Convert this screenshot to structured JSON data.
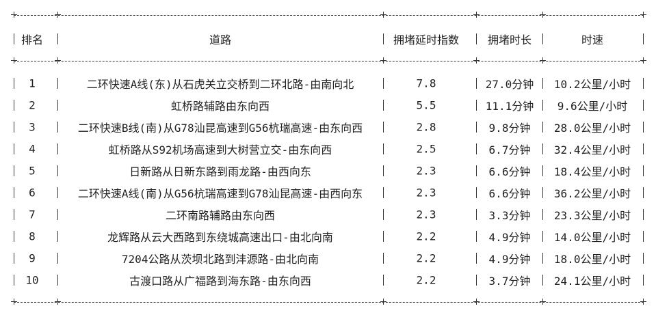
{
  "table": {
    "headers": [
      "排名",
      "道路",
      "拥堵延时指数",
      "拥堵时长",
      "时速"
    ],
    "rows": [
      {
        "rank": "1",
        "road": "二环快速A线(东)从石虎关立交桥到二环北路-由南向北",
        "index": "7.8",
        "duration": "27.0分钟",
        "speed": "10.2公里/小时"
      },
      {
        "rank": "2",
        "road": "虹桥路辅路由东向西",
        "index": "5.5",
        "duration": "11.1分钟",
        "speed": "9.6公里/小时"
      },
      {
        "rank": "3",
        "road": "二环快速B线(南)从G78汕昆高速到G56杭瑞高速-由东向西",
        "index": "2.8",
        "duration": "9.8分钟",
        "speed": "28.0公里/小时"
      },
      {
        "rank": "4",
        "road": "虹桥路从S92机场高速到大树营立交-由东向西",
        "index": "2.5",
        "duration": "6.7分钟",
        "speed": "32.4公里/小时"
      },
      {
        "rank": "5",
        "road": "日新路从日新东路到雨龙路-由西向东",
        "index": "2.3",
        "duration": "6.6分钟",
        "speed": "18.4公里/小时"
      },
      {
        "rank": "6",
        "road": "二环快速A线(南)从G56杭瑞高速到G78汕昆高速-由西向东",
        "index": "2.3",
        "duration": "6.6分钟",
        "speed": "36.2公里/小时"
      },
      {
        "rank": "7",
        "road": "二环南路辅路由东向西",
        "index": "2.3",
        "duration": "3.3分钟",
        "speed": "23.3公里/小时"
      },
      {
        "rank": "8",
        "road": "龙辉路从云大西路到东绕城高速出口-由北向南",
        "index": "2.2",
        "duration": "4.9分钟",
        "speed": "14.0公里/小时"
      },
      {
        "rank": "9",
        "road": "7204公路从茨坝北路到沣源路-由北向南",
        "index": "2.2",
        "duration": "4.9分钟",
        "speed": "18.0公里/小时"
      },
      {
        "rank": "10",
        "road": "古渡口路从广福路到海东路-由东向西",
        "index": "2.2",
        "duration": "3.7分钟",
        "speed": "24.1公里/小时"
      }
    ]
  }
}
